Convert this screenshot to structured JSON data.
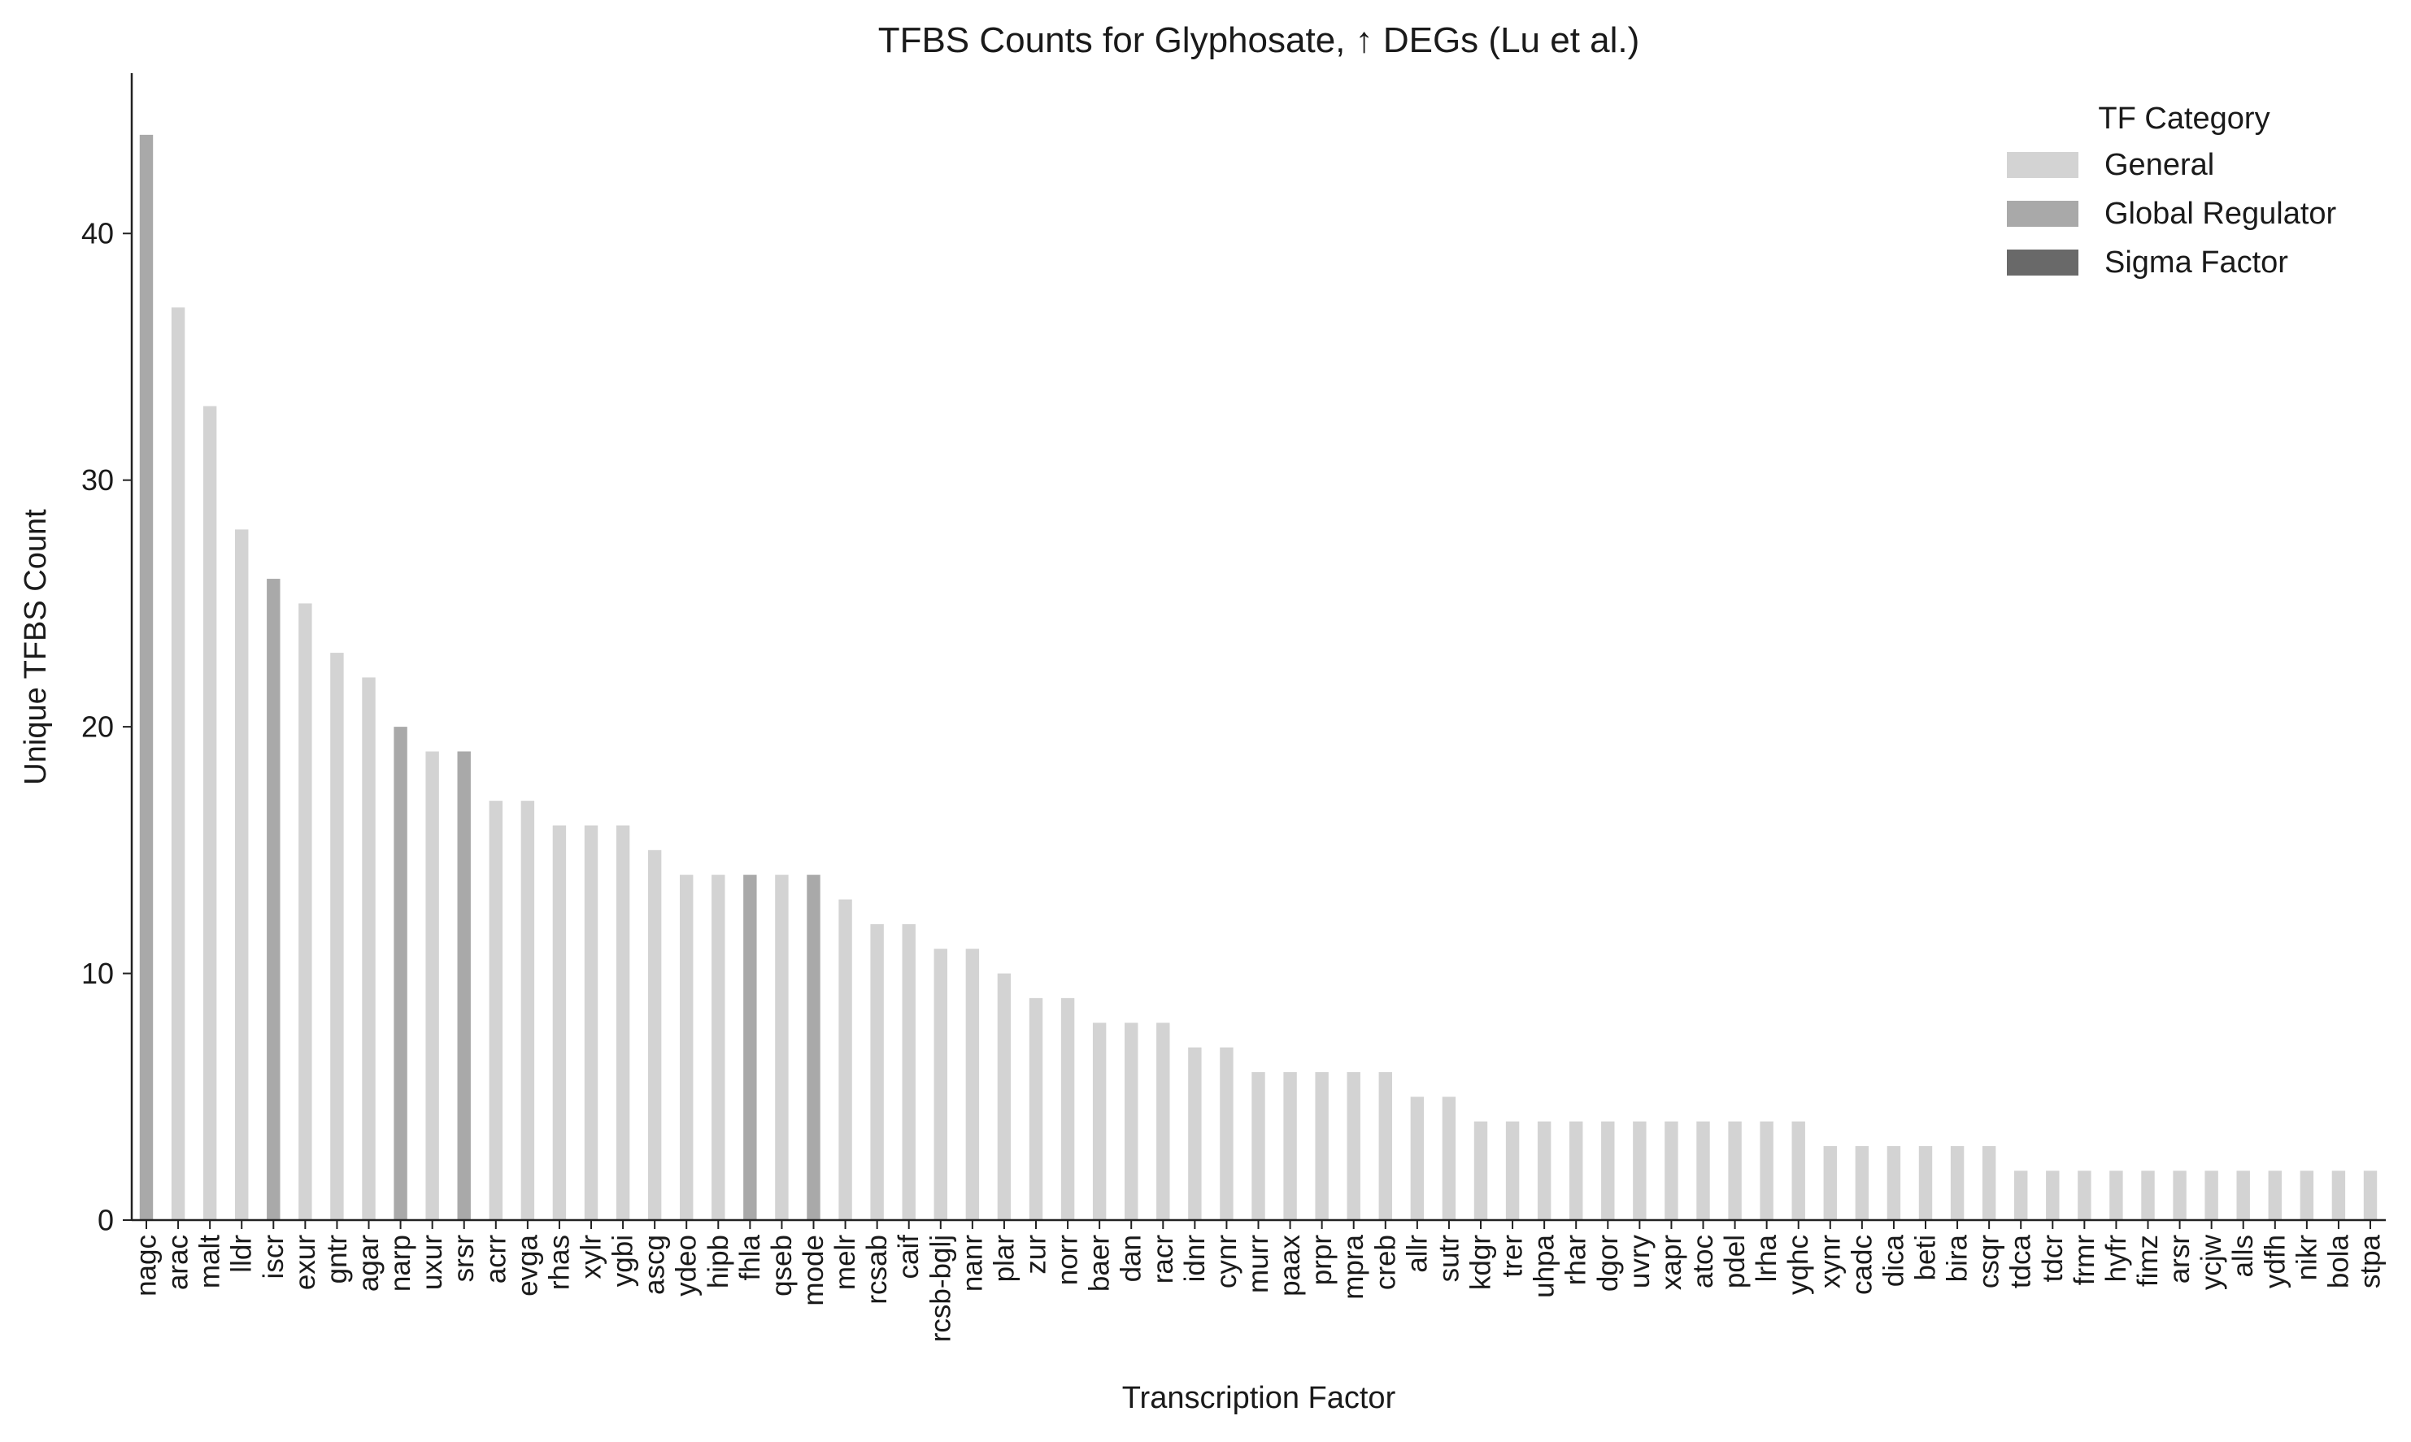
{
  "chart_data": {
    "type": "bar",
    "title": "TFBS Counts for Glyphosate, ↑ DEGs (Lu et al.)",
    "xlabel": "Transcription Factor",
    "ylabel": "Unique TFBS Count",
    "ylim": [
      0,
      46.5
    ],
    "yticks": [
      0,
      10,
      20,
      30,
      40
    ],
    "grid": false,
    "legend": {
      "title": "TF Category",
      "placement": "top-right",
      "entries": [
        {
          "label": "General",
          "color": "#d3d3d3"
        },
        {
          "label": "Global Regulator",
          "color": "#a9a9a9"
        },
        {
          "label": "Sigma Factor",
          "color": "#696969"
        }
      ]
    },
    "category_colors": {
      "General": "#d3d3d3",
      "Global Regulator": "#a9a9a9",
      "Sigma Factor": "#696969"
    },
    "bars": [
      {
        "tf": "nagc",
        "value": 44,
        "category": "Global Regulator"
      },
      {
        "tf": "arac",
        "value": 37,
        "category": "General"
      },
      {
        "tf": "malt",
        "value": 33,
        "category": "General"
      },
      {
        "tf": "lldr",
        "value": 28,
        "category": "General"
      },
      {
        "tf": "iscr",
        "value": 26,
        "category": "Global Regulator"
      },
      {
        "tf": "exur",
        "value": 25,
        "category": "General"
      },
      {
        "tf": "gntr",
        "value": 23,
        "category": "General"
      },
      {
        "tf": "agar",
        "value": 22,
        "category": "General"
      },
      {
        "tf": "narp",
        "value": 20,
        "category": "Global Regulator"
      },
      {
        "tf": "uxur",
        "value": 19,
        "category": "General"
      },
      {
        "tf": "srsr",
        "value": 19,
        "category": "Global Regulator"
      },
      {
        "tf": "acrr",
        "value": 17,
        "category": "General"
      },
      {
        "tf": "evga",
        "value": 17,
        "category": "General"
      },
      {
        "tf": "rhas",
        "value": 16,
        "category": "General"
      },
      {
        "tf": "xylr",
        "value": 16,
        "category": "General"
      },
      {
        "tf": "ygbi",
        "value": 16,
        "category": "General"
      },
      {
        "tf": "ascg",
        "value": 15,
        "category": "General"
      },
      {
        "tf": "ydeo",
        "value": 14,
        "category": "General"
      },
      {
        "tf": "hipb",
        "value": 14,
        "category": "General"
      },
      {
        "tf": "fhla",
        "value": 14,
        "category": "Global Regulator"
      },
      {
        "tf": "qseb",
        "value": 14,
        "category": "General"
      },
      {
        "tf": "mode",
        "value": 14,
        "category": "Global Regulator"
      },
      {
        "tf": "melr",
        "value": 13,
        "category": "General"
      },
      {
        "tf": "rcsab",
        "value": 12,
        "category": "General"
      },
      {
        "tf": "caif",
        "value": 12,
        "category": "General"
      },
      {
        "tf": "rcsb-bglj",
        "value": 11,
        "category": "General"
      },
      {
        "tf": "nanr",
        "value": 11,
        "category": "General"
      },
      {
        "tf": "plar",
        "value": 10,
        "category": "General"
      },
      {
        "tf": "zur",
        "value": 9,
        "category": "General"
      },
      {
        "tf": "norr",
        "value": 9,
        "category": "General"
      },
      {
        "tf": "baer",
        "value": 8,
        "category": "General"
      },
      {
        "tf": "dan",
        "value": 8,
        "category": "General"
      },
      {
        "tf": "racr",
        "value": 8,
        "category": "General"
      },
      {
        "tf": "idnr",
        "value": 7,
        "category": "General"
      },
      {
        "tf": "cynr",
        "value": 7,
        "category": "General"
      },
      {
        "tf": "murr",
        "value": 6,
        "category": "General"
      },
      {
        "tf": "paax",
        "value": 6,
        "category": "General"
      },
      {
        "tf": "prpr",
        "value": 6,
        "category": "General"
      },
      {
        "tf": "mpra",
        "value": 6,
        "category": "General"
      },
      {
        "tf": "creb",
        "value": 6,
        "category": "General"
      },
      {
        "tf": "allr",
        "value": 5,
        "category": "General"
      },
      {
        "tf": "sutr",
        "value": 5,
        "category": "General"
      },
      {
        "tf": "kdgr",
        "value": 4,
        "category": "General"
      },
      {
        "tf": "trer",
        "value": 4,
        "category": "General"
      },
      {
        "tf": "uhpa",
        "value": 4,
        "category": "General"
      },
      {
        "tf": "rhar",
        "value": 4,
        "category": "General"
      },
      {
        "tf": "dgor",
        "value": 4,
        "category": "General"
      },
      {
        "tf": "uvry",
        "value": 4,
        "category": "General"
      },
      {
        "tf": "xapr",
        "value": 4,
        "category": "General"
      },
      {
        "tf": "atoc",
        "value": 4,
        "category": "General"
      },
      {
        "tf": "pdel",
        "value": 4,
        "category": "General"
      },
      {
        "tf": "lrha",
        "value": 4,
        "category": "General"
      },
      {
        "tf": "yqhc",
        "value": 4,
        "category": "General"
      },
      {
        "tf": "xynr",
        "value": 3,
        "category": "General"
      },
      {
        "tf": "cadc",
        "value": 3,
        "category": "General"
      },
      {
        "tf": "dica",
        "value": 3,
        "category": "General"
      },
      {
        "tf": "beti",
        "value": 3,
        "category": "General"
      },
      {
        "tf": "bira",
        "value": 3,
        "category": "General"
      },
      {
        "tf": "csqr",
        "value": 3,
        "category": "General"
      },
      {
        "tf": "tdca",
        "value": 2,
        "category": "General"
      },
      {
        "tf": "tdcr",
        "value": 2,
        "category": "General"
      },
      {
        "tf": "frmr",
        "value": 2,
        "category": "General"
      },
      {
        "tf": "hyfr",
        "value": 2,
        "category": "General"
      },
      {
        "tf": "fimz",
        "value": 2,
        "category": "General"
      },
      {
        "tf": "arsr",
        "value": 2,
        "category": "General"
      },
      {
        "tf": "ycjw",
        "value": 2,
        "category": "General"
      },
      {
        "tf": "alls",
        "value": 2,
        "category": "General"
      },
      {
        "tf": "ydfh",
        "value": 2,
        "category": "General"
      },
      {
        "tf": "nikr",
        "value": 2,
        "category": "General"
      },
      {
        "tf": "bola",
        "value": 2,
        "category": "General"
      },
      {
        "tf": "stpa",
        "value": 2,
        "category": "General"
      }
    ]
  }
}
